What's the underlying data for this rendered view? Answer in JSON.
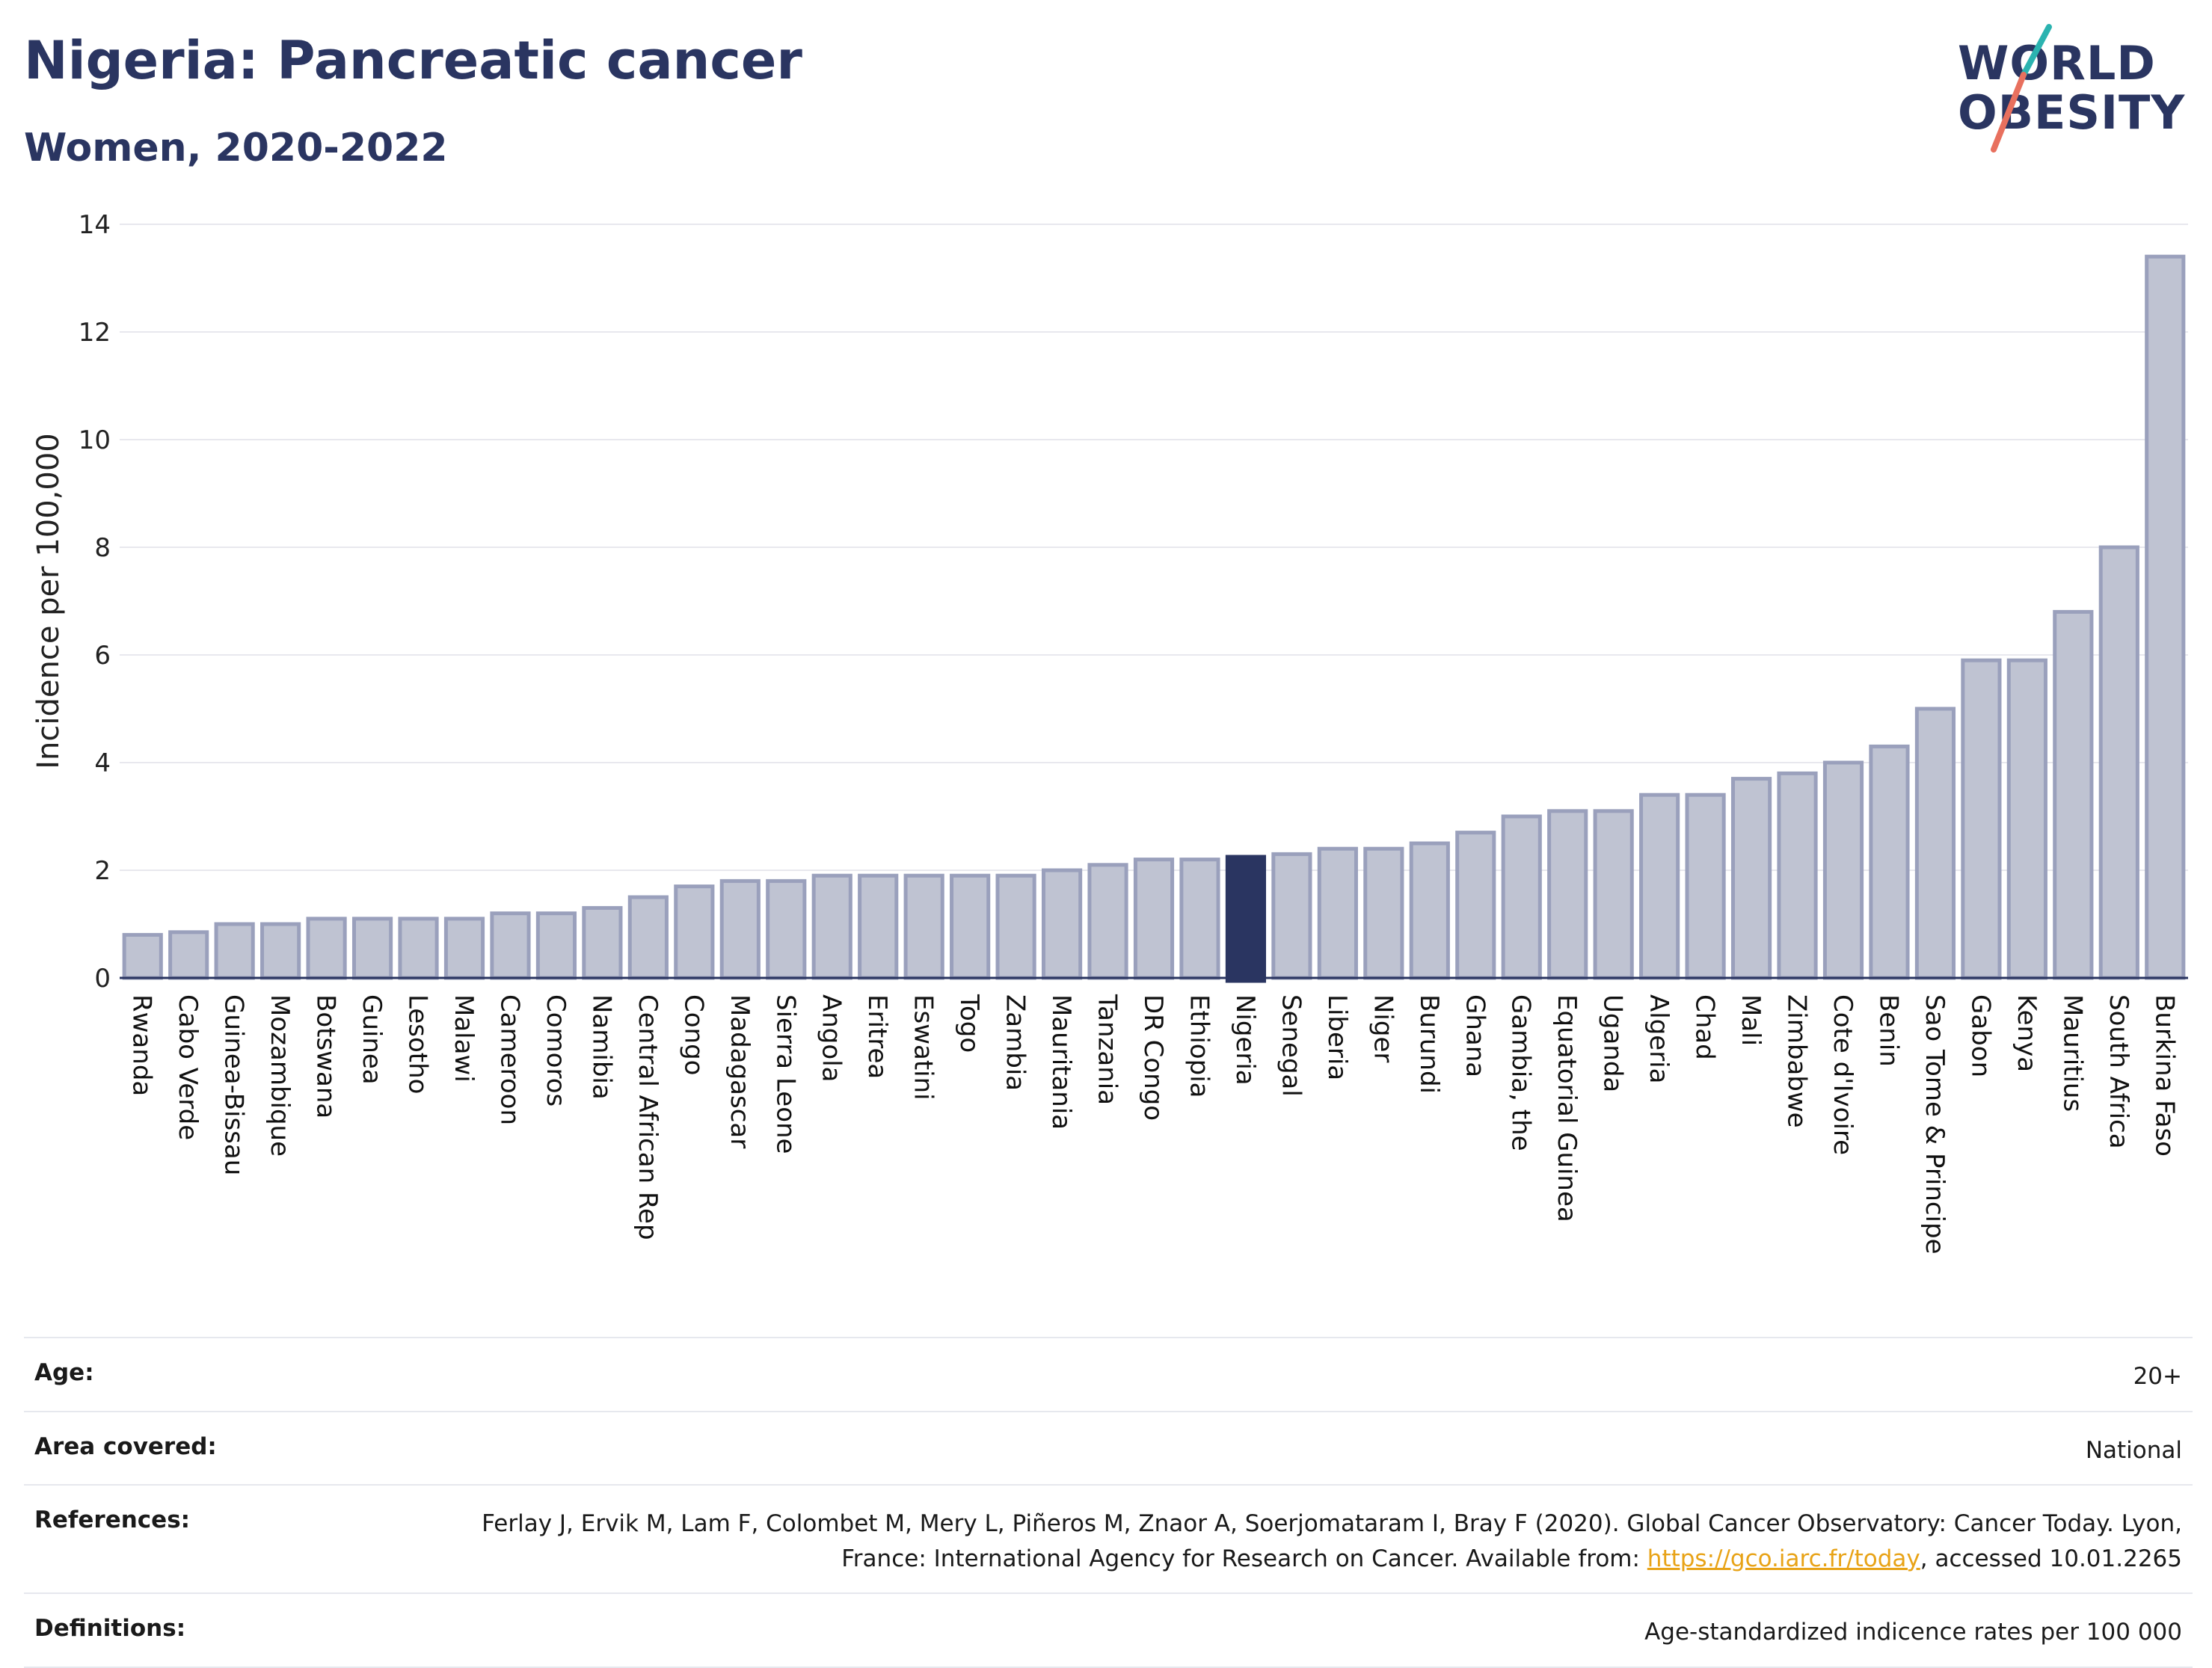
{
  "header": {
    "title": "Nigeria: Pancreatic cancer",
    "subtitle": "Women, 2020-2022"
  },
  "logo": {
    "line1": "WORLD",
    "line2": "OBESITY",
    "colors": {
      "text": "#2a3561",
      "slash_top": "#2bb3b0",
      "slash_bottom": "#e8705e"
    }
  },
  "chart_data": {
    "type": "bar",
    "ylabel": "Incidence per 100,000",
    "xlabel": "",
    "ylim": [
      0,
      14
    ],
    "yticks": [
      0,
      2,
      4,
      6,
      8,
      10,
      12,
      14
    ],
    "grid": true,
    "highlight": "Nigeria",
    "colors": {
      "bar": "#bfc3d2",
      "bar_edge": "#9aa0bc",
      "highlight": "#2a3561",
      "grid": "#e8e8ee",
      "axis": "#2a3561"
    },
    "categories": [
      "Rwanda",
      "Cabo Verde",
      "Guinea-Bissau",
      "Mozambique",
      "Botswana",
      "Guinea",
      "Lesotho",
      "Malawi",
      "Cameroon",
      "Comoros",
      "Namibia",
      "Central African Rep",
      "Congo",
      "Madagascar",
      "Sierra Leone",
      "Angola",
      "Eritrea",
      "Eswatini",
      "Togo",
      "Zambia",
      "Mauritania",
      "Tanzania",
      "DR Congo",
      "Ethiopia",
      "Nigeria",
      "Senegal",
      "Liberia",
      "Niger",
      "Burundi",
      "Ghana",
      "Gambia, the",
      "Equatorial Guinea",
      "Uganda",
      "Algeria",
      "Chad",
      "Mali",
      "Zimbabwe",
      "Cote d'Ivoire",
      "Benin",
      "Sao Tome & Principe",
      "Gabon",
      "Kenya",
      "Mauritius",
      "South Africa",
      "Burkina Faso"
    ],
    "values": [
      0.8,
      0.85,
      1.0,
      1.0,
      1.1,
      1.1,
      1.1,
      1.1,
      1.2,
      1.2,
      1.3,
      1.5,
      1.7,
      1.8,
      1.8,
      1.9,
      1.9,
      1.9,
      1.9,
      1.9,
      2.0,
      2.1,
      2.2,
      2.2,
      2.25,
      2.3,
      2.4,
      2.4,
      2.5,
      2.7,
      3.0,
      3.1,
      3.1,
      3.4,
      3.4,
      3.7,
      3.8,
      4.0,
      4.3,
      5.0,
      5.9,
      5.9,
      6.8,
      8.0,
      13.4
    ]
  },
  "meta": {
    "rows": [
      {
        "label": "Age:",
        "value": "20+"
      },
      {
        "label": "Area covered:",
        "value": "National"
      },
      {
        "label": "References:",
        "value_before": "Ferlay J, Ervik M, Lam F, Colombet M, Mery L, Piñeros M, Znaor A, Soerjomataram I, Bray F (2020). Global Cancer Observatory: Cancer Today. Lyon, France: International Agency for Research on Cancer. Available from: ",
        "link": "https://gco.iarc.fr/today",
        "value_after": ", accessed 10.01.2265"
      },
      {
        "label": "Definitions:",
        "value": "Age-standardized indicence rates per 100 000"
      }
    ]
  }
}
